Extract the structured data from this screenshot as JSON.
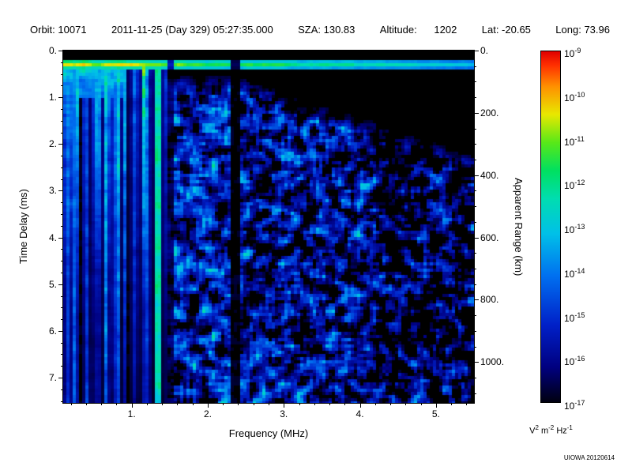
{
  "header": {
    "items": [
      "Orbit: 10071",
      "2011-11-25 (Day 329) 05:27:35.000",
      "SZA: 130.83",
      "Altitude:      1202",
      "Lat: -20.65",
      "Long: 73.96"
    ]
  },
  "chart_data": {
    "type": "heatmap",
    "description": "Radar sounder ionogram: received spectral density vs frequency and apparent time delay",
    "xlabel": "Frequency (MHz)",
    "ylabel": "Time Delay (ms)",
    "ylabel_right": "Apparent Range (km)",
    "x_range": [
      0.1,
      5.5
    ],
    "y_range": [
      0,
      7.54
    ],
    "km_per_ms": 150,
    "x_ticks": [
      {
        "v": 1,
        "label": "1."
      },
      {
        "v": 2,
        "label": "2."
      },
      {
        "v": 3,
        "label": "3."
      },
      {
        "v": 4,
        "label": "4."
      },
      {
        "v": 5,
        "label": "5."
      }
    ],
    "x_minor_step": 0.2,
    "y_ticks": [
      {
        "v": 0,
        "label": "0."
      },
      {
        "v": 1,
        "label": "1."
      },
      {
        "v": 2,
        "label": "2."
      },
      {
        "v": 3,
        "label": "3."
      },
      {
        "v": 4,
        "label": "4."
      },
      {
        "v": 5,
        "label": "5."
      },
      {
        "v": 6,
        "label": "6."
      },
      {
        "v": 7,
        "label": "7."
      }
    ],
    "y_minor_step": 0.25,
    "right_ticks": [
      {
        "v": 0,
        "label": "0."
      },
      {
        "v": 200,
        "label": "200."
      },
      {
        "v": 400,
        "label": "400."
      },
      {
        "v": 600,
        "label": "600."
      },
      {
        "v": 800,
        "label": "800."
      },
      {
        "v": 1000,
        "label": "1000."
      }
    ],
    "right_minor_step": 50,
    "colorbar": {
      "base": "10",
      "exponents": [
        "-9",
        "-10",
        "-11",
        "-12",
        "-13",
        "-14",
        "-15",
        "-16",
        "-17"
      ],
      "units_parts": [
        {
          "t": "V"
        },
        {
          "t": "2",
          "sup": true
        },
        {
          "t": " m"
        },
        {
          "t": "-2",
          "sup": true
        },
        {
          "t": " Hz"
        },
        {
          "t": "-1",
          "sup": true
        }
      ],
      "stops": [
        {
          "p": 0.0,
          "c": "#000010"
        },
        {
          "p": 0.1,
          "c": "#000080"
        },
        {
          "p": 0.22,
          "c": "#0020c8"
        },
        {
          "p": 0.36,
          "c": "#0070f0"
        },
        {
          "p": 0.48,
          "c": "#00c0e8"
        },
        {
          "p": 0.58,
          "c": "#00ddb0"
        },
        {
          "p": 0.66,
          "c": "#00e060"
        },
        {
          "p": 0.74,
          "c": "#58e818"
        },
        {
          "p": 0.82,
          "c": "#e8e800"
        },
        {
          "p": 0.9,
          "c": "#ff9000"
        },
        {
          "p": 0.96,
          "c": "#ff3000"
        },
        {
          "p": 1.0,
          "c": "#e00000"
        }
      ]
    },
    "features": {
      "seed": 20120614,
      "surface_band": {
        "delay_ms": 0.3,
        "half_width_ms": 0.1,
        "value_low_freq": 0.8,
        "value_high_freq": 0.48
      },
      "top_left_patch": {
        "f_max_mhz": 0.95,
        "t_max_ms": 1.0
      },
      "resonance_region": {
        "f_max_mhz": 1.47,
        "value": 0.65
      },
      "bright_stripes": [
        {
          "f_mhz": 1.33,
          "width_mhz": 0.045,
          "value": 0.6
        }
      ],
      "dark_lanes": [
        {
          "f_mhz": 2.36,
          "width_mhz": 0.05,
          "factor": 0.1
        },
        {
          "f_mhz": 1.5,
          "width_mhz": 0.045,
          "factor": 0.3
        }
      ],
      "speckle": {
        "onset_delay_ms": 0.5,
        "onset_slope_ms_per_mhz": 0.55,
        "thr_low": 0.38,
        "thr_mid": 0.41,
        "thr_high": 0.47,
        "gain": 0.6
      }
    }
  },
  "footer": {
    "credit": "UIOWA 20120614"
  }
}
